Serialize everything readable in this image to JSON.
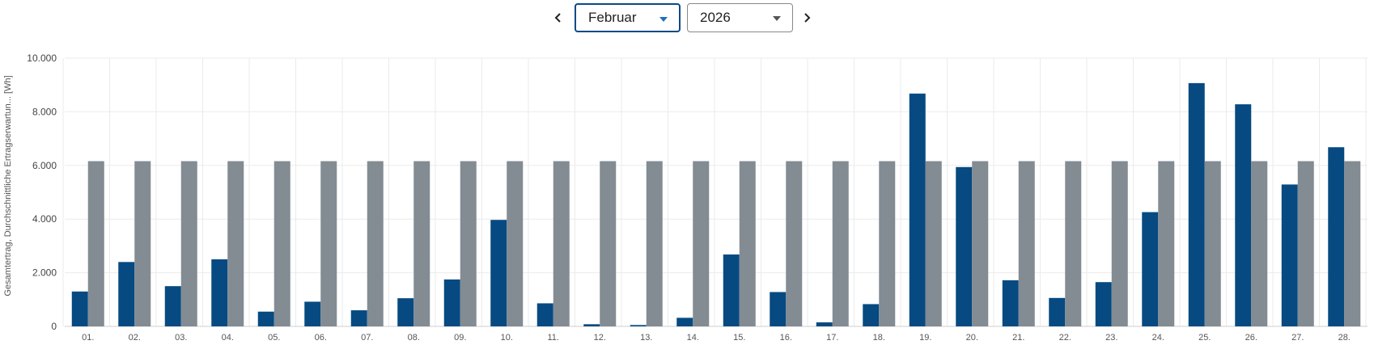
{
  "controls": {
    "month": "Februar",
    "year": "2026",
    "prev_icon": "chevron-left-icon",
    "next_icon": "chevron-right-icon"
  },
  "colors": {
    "actual": "#064a81",
    "expected": "#838b93",
    "grid": "#ebebeb"
  },
  "chart_data": {
    "type": "bar",
    "ylabel": "Gesamtertrag, Durchschnittliche Ertragserwartun... [Wh]",
    "ylim": [
      0,
      10000
    ],
    "yticks": [
      0,
      2000,
      4000,
      6000,
      8000,
      10000
    ],
    "ytick_labels": [
      "0",
      "2.000",
      "4.000",
      "6.000",
      "8.000",
      "10.000"
    ],
    "grid": true,
    "categories": [
      "01.",
      "02.",
      "03.",
      "04.",
      "05.",
      "06.",
      "07.",
      "08.",
      "09.",
      "10.",
      "11.",
      "12.",
      "13.",
      "14.",
      "15.",
      "16.",
      "17.",
      "18.",
      "19.",
      "20.",
      "21.",
      "22.",
      "23.",
      "24.",
      "25.",
      "26.",
      "27.",
      "28."
    ],
    "series": [
      {
        "values": [
          1300,
          2400,
          1500,
          2500,
          550,
          920,
          600,
          1050,
          1750,
          3970,
          860,
          80,
          50,
          320,
          2680,
          1280,
          150,
          830,
          8680,
          5940,
          1720,
          1060,
          1650,
          4260,
          9070,
          8280,
          5290,
          6680
        ]
      },
      {
        "values": [
          6160,
          6160,
          6160,
          6160,
          6160,
          6160,
          6160,
          6160,
          6160,
          6160,
          6160,
          6160,
          6160,
          6160,
          6160,
          6160,
          6160,
          6160,
          6160,
          6160,
          6160,
          6160,
          6160,
          6160,
          6160,
          6160,
          6160,
          6160
        ]
      }
    ]
  }
}
